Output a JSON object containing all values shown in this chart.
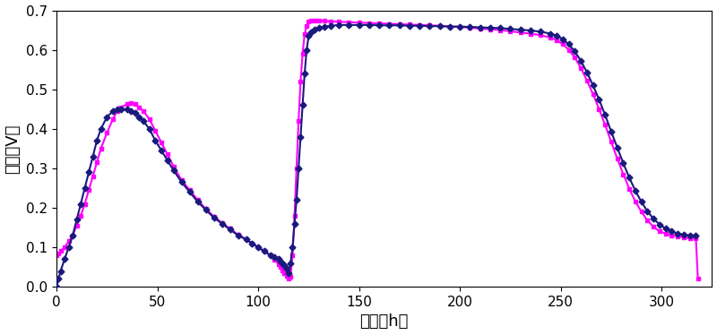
{
  "xlabel": "时间（h）",
  "ylabel": "电压（V）",
  "xlim": [
    0,
    325
  ],
  "ylim": [
    0,
    0.7
  ],
  "yticks": [
    0,
    0.1,
    0.2,
    0.3,
    0.4,
    0.5,
    0.6,
    0.7
  ],
  "xticks": [
    0,
    50,
    100,
    150,
    200,
    250,
    300
  ],
  "background_color": "#ffffff",
  "line1_color": "#1a1a7e",
  "line2_color": "#ff00ff",
  "figsize": [
    8.0,
    3.74
  ],
  "dpi": 100,
  "marker_size": 3.5,
  "linewidth": 1.5,
  "line1_x": [
    0,
    1,
    2,
    4,
    6,
    8,
    10,
    12,
    14,
    16,
    18,
    20,
    22,
    25,
    28,
    30,
    32,
    35,
    37,
    39,
    41,
    43,
    46,
    49,
    52,
    55,
    58,
    62,
    66,
    70,
    74,
    78,
    82,
    86,
    90,
    94,
    97,
    100,
    103,
    106,
    108,
    110,
    111,
    112,
    113,
    114,
    115,
    116,
    117,
    118,
    119,
    120,
    121,
    122,
    123,
    124,
    125,
    126,
    128,
    130,
    133,
    136,
    140,
    145,
    150,
    155,
    160,
    165,
    170,
    175,
    180,
    185,
    190,
    195,
    200,
    205,
    210,
    215,
    220,
    225,
    230,
    235,
    240,
    245,
    248,
    251,
    254,
    257,
    260,
    263,
    266,
    269,
    272,
    275,
    278,
    281,
    284,
    287,
    290,
    293,
    296,
    299,
    302,
    305,
    308,
    311,
    314,
    317
  ],
  "line1_y": [
    0.0,
    0.02,
    0.04,
    0.07,
    0.1,
    0.13,
    0.17,
    0.21,
    0.25,
    0.29,
    0.33,
    0.37,
    0.4,
    0.43,
    0.445,
    0.45,
    0.45,
    0.45,
    0.445,
    0.44,
    0.43,
    0.42,
    0.4,
    0.37,
    0.345,
    0.32,
    0.295,
    0.265,
    0.24,
    0.215,
    0.195,
    0.175,
    0.16,
    0.145,
    0.13,
    0.12,
    0.11,
    0.1,
    0.09,
    0.08,
    0.075,
    0.07,
    0.065,
    0.06,
    0.055,
    0.045,
    0.035,
    0.06,
    0.1,
    0.16,
    0.22,
    0.3,
    0.38,
    0.46,
    0.54,
    0.6,
    0.635,
    0.645,
    0.652,
    0.656,
    0.659,
    0.661,
    0.663,
    0.663,
    0.663,
    0.663,
    0.662,
    0.662,
    0.662,
    0.661,
    0.661,
    0.66,
    0.66,
    0.659,
    0.659,
    0.658,
    0.657,
    0.656,
    0.655,
    0.653,
    0.651,
    0.649,
    0.646,
    0.641,
    0.636,
    0.627,
    0.614,
    0.596,
    0.572,
    0.543,
    0.51,
    0.474,
    0.435,
    0.393,
    0.353,
    0.313,
    0.276,
    0.243,
    0.215,
    0.191,
    0.172,
    0.158,
    0.147,
    0.14,
    0.135,
    0.132,
    0.13,
    0.13
  ],
  "line2_x": [
    0,
    1,
    2,
    4,
    6,
    8,
    10,
    12,
    14,
    16,
    18,
    20,
    22,
    25,
    28,
    30,
    32,
    35,
    37,
    39,
    41,
    43,
    46,
    49,
    52,
    55,
    58,
    62,
    66,
    70,
    74,
    78,
    82,
    86,
    90,
    94,
    97,
    100,
    103,
    106,
    108,
    110,
    111,
    112,
    113,
    114,
    115,
    116,
    117,
    118,
    119,
    120,
    121,
    122,
    123,
    124,
    125,
    126,
    128,
    130,
    133,
    136,
    140,
    145,
    150,
    155,
    160,
    165,
    170,
    175,
    180,
    185,
    190,
    195,
    200,
    205,
    210,
    215,
    220,
    225,
    230,
    235,
    240,
    245,
    248,
    251,
    254,
    257,
    260,
    263,
    266,
    269,
    272,
    275,
    278,
    281,
    284,
    287,
    290,
    293,
    296,
    299,
    302,
    305,
    308,
    311,
    314,
    317,
    318
  ],
  "line2_y": [
    0.08,
    0.085,
    0.09,
    0.1,
    0.115,
    0.13,
    0.155,
    0.18,
    0.21,
    0.245,
    0.28,
    0.315,
    0.35,
    0.39,
    0.425,
    0.445,
    0.455,
    0.462,
    0.465,
    0.462,
    0.455,
    0.445,
    0.425,
    0.395,
    0.365,
    0.335,
    0.305,
    0.27,
    0.245,
    0.22,
    0.197,
    0.178,
    0.162,
    0.147,
    0.132,
    0.12,
    0.11,
    0.1,
    0.09,
    0.08,
    0.068,
    0.058,
    0.05,
    0.042,
    0.035,
    0.028,
    0.02,
    0.025,
    0.08,
    0.18,
    0.3,
    0.42,
    0.52,
    0.59,
    0.64,
    0.66,
    0.672,
    0.675,
    0.675,
    0.674,
    0.673,
    0.672,
    0.671,
    0.67,
    0.669,
    0.668,
    0.667,
    0.666,
    0.665,
    0.664,
    0.663,
    0.662,
    0.661,
    0.659,
    0.658,
    0.656,
    0.654,
    0.652,
    0.65,
    0.647,
    0.644,
    0.641,
    0.637,
    0.631,
    0.625,
    0.614,
    0.6,
    0.58,
    0.554,
    0.522,
    0.488,
    0.45,
    0.41,
    0.367,
    0.325,
    0.285,
    0.248,
    0.216,
    0.19,
    0.168,
    0.152,
    0.14,
    0.135,
    0.13,
    0.128,
    0.125,
    0.123,
    0.122,
    0.02
  ]
}
